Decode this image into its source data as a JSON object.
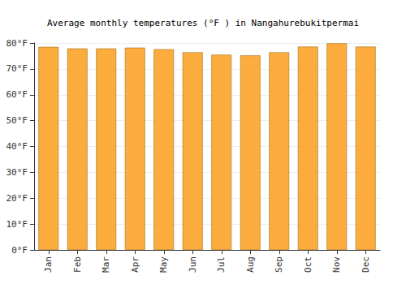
{
  "chart_data": {
    "type": "bar",
    "title": "Average monthly temperatures (°F ) in Nangahurebukitpermai",
    "categories": [
      "Jan",
      "Feb",
      "Mar",
      "Apr",
      "May",
      "Jun",
      "Jul",
      "Aug",
      "Sep",
      "Oct",
      "Nov",
      "Dec"
    ],
    "values": [
      78.5,
      77.9,
      77.9,
      78.2,
      77.6,
      76.4,
      75.5,
      75.2,
      76.4,
      78.6,
      79.9,
      78.6
    ],
    "color": "#fca832",
    "ylim": [
      0,
      80
    ],
    "yticks": [
      {
        "value": 0,
        "label": "0°F"
      },
      {
        "value": 10,
        "label": "10°F"
      },
      {
        "value": 20,
        "label": "20°F"
      },
      {
        "value": 30,
        "label": "30°F"
      },
      {
        "value": 40,
        "label": "40°F"
      },
      {
        "value": 50,
        "label": "50°F"
      },
      {
        "value": 60,
        "label": "60°F"
      },
      {
        "value": 70,
        "label": "70°F"
      },
      {
        "value": 80,
        "label": "80°F"
      }
    ],
    "grid": true
  }
}
